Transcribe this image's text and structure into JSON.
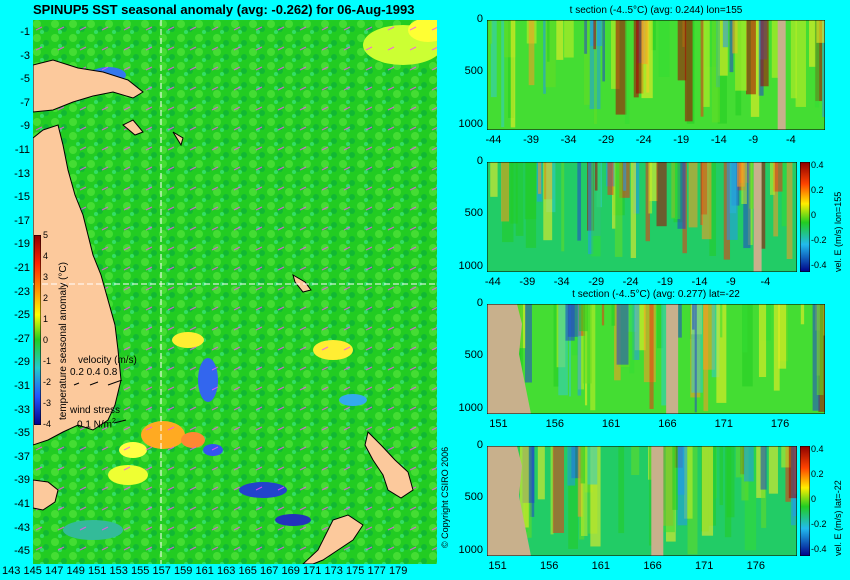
{
  "main_title": "SPINUP5 SST seasonal anomaly (avg: -0.262) for 06-Aug-1993",
  "copyright": "© Copyright CSIRO 2006",
  "colors": {
    "background": "#00ffff",
    "land": "#fcc99c",
    "land_section": "#c8b08c"
  },
  "map": {
    "y_ticks": [
      "-1",
      "-3",
      "-5",
      "-7",
      "-9",
      "-11",
      "-13",
      "-15",
      "-17",
      "-19",
      "-21",
      "-23",
      "-25",
      "-27",
      "-29",
      "-31",
      "-33",
      "-35",
      "-37",
      "-39",
      "-41",
      "-43",
      "-45"
    ],
    "x_ticks": [
      "143",
      "145",
      "147",
      "149",
      "151",
      "153",
      "155",
      "157",
      "159",
      "161",
      "163",
      "165",
      "167",
      "169",
      "171",
      "173",
      "175",
      "177",
      "179"
    ],
    "colorbar_label": "temperature seasonal anomaly (°C)",
    "colorbar_ticks": [
      "5",
      "4",
      "3",
      "2",
      "1",
      "0",
      "-1",
      "-2",
      "-3",
      "-4"
    ],
    "velocity_label": "velocity (m/s)",
    "velocity_values": "0.2 0.4 0.8",
    "wind_label": "wind stress",
    "wind_value": "0.1 N/m",
    "wind_exp": "2"
  },
  "chart_data": [
    {
      "type": "heatmap",
      "title": "t section (-4..5°C) (avg: 0.244) lon=155",
      "x_ticks": [
        "-44",
        "-39",
        "-34",
        "-29",
        "-24",
        "-19",
        "-14",
        "-9",
        "-4"
      ],
      "y_ticks": [
        "0",
        "500",
        "1000"
      ],
      "xlim": [
        -45,
        0
      ],
      "ylim": [
        1050,
        0
      ]
    },
    {
      "type": "heatmap",
      "title": "",
      "x_ticks": [
        "-44",
        "-39",
        "-34",
        "-29",
        "-24",
        "-19",
        "-14",
        "-9",
        "-4"
      ],
      "y_ticks": [
        "0",
        "500",
        "1000"
      ],
      "xlim": [
        -45,
        0
      ],
      "ylim": [
        1050,
        0
      ],
      "colorbar_label": "vel. E (m/s) lon=155",
      "colorbar_ticks": [
        "0.4",
        "0.2",
        "0",
        "-0.2",
        "-0.4"
      ]
    },
    {
      "type": "heatmap",
      "title": "t section (-4..5°C) (avg: 0.277) lat=-22",
      "x_ticks": [
        "151",
        "156",
        "161",
        "166",
        "171",
        "176"
      ],
      "y_ticks": [
        "0",
        "500",
        "1000"
      ],
      "xlim": [
        150,
        180
      ],
      "ylim": [
        1050,
        0
      ]
    },
    {
      "type": "heatmap",
      "title": "",
      "x_ticks": [
        "151",
        "156",
        "161",
        "166",
        "171",
        "176"
      ],
      "y_ticks": [
        "0",
        "500",
        "1000"
      ],
      "xlim": [
        150,
        180
      ],
      "ylim": [
        1050,
        0
      ],
      "colorbar_label": "vel. E (m/s) lat=-22",
      "colorbar_ticks": [
        "0.4",
        "0.2",
        "0",
        "-0.2",
        "-0.4"
      ]
    }
  ]
}
